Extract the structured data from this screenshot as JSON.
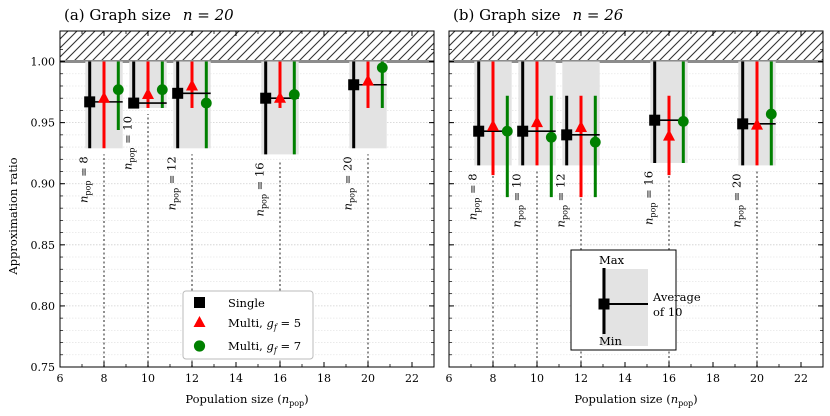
{
  "chart_data": [
    {
      "type": "errorbar",
      "title": "(a) Graph size   n = 20",
      "title_label": "(a) Graph size",
      "title_n": "n = 20",
      "xlabel": "Population size (n_pop)",
      "ylabel": "Approximation ratio",
      "xlim": [
        6,
        23
      ],
      "ylim": [
        0.75,
        1.025
      ],
      "xticks": [
        6,
        8,
        10,
        12,
        14,
        16,
        18,
        20,
        22
      ],
      "yticks": [
        0.75,
        0.8,
        0.85,
        0.9,
        0.95,
        1.0
      ],
      "ytick_labels": [
        "0.75",
        "0.80",
        "0.85",
        "0.90",
        "0.95",
        "1.00"
      ],
      "groups": [
        {
          "label": "n_pop = 8",
          "n_pop": 8,
          "band_min": 0.929,
          "single": {
            "avg": 0.967,
            "min": 0.929,
            "max": 1.0
          },
          "multi5": {
            "avg": 0.97,
            "min": 0.929,
            "max": 1.0
          },
          "multi7": {
            "avg": 0.977,
            "min": 0.944,
            "max": 1.0
          }
        },
        {
          "label": "n_pop = 10",
          "n_pop": 10,
          "band_min": 0.962,
          "single": {
            "avg": 0.966,
            "min": 0.962,
            "max": 1.0
          },
          "multi5": {
            "avg": 0.973,
            "min": 0.962,
            "max": 1.0
          },
          "multi7": {
            "avg": 0.977,
            "min": 0.962,
            "max": 1.0
          }
        },
        {
          "label": "n_pop = 12",
          "n_pop": 12,
          "band_min": 0.929,
          "single": {
            "avg": 0.974,
            "min": 0.929,
            "max": 1.0
          },
          "multi5": {
            "avg": 0.98,
            "min": 0.962,
            "max": 1.0
          },
          "multi7": {
            "avg": 0.966,
            "min": 0.929,
            "max": 1.0
          }
        },
        {
          "label": "n_pop = 16",
          "n_pop": 16,
          "band_min": 0.924,
          "single": {
            "avg": 0.97,
            "min": 0.924,
            "max": 1.0
          },
          "multi5": {
            "avg": 0.97,
            "min": 0.962,
            "max": 1.0
          },
          "multi7": {
            "avg": 0.973,
            "min": 0.924,
            "max": 1.0
          }
        },
        {
          "label": "n_pop = 20",
          "n_pop": 20,
          "band_min": 0.929,
          "single": {
            "avg": 0.981,
            "min": 0.929,
            "max": 1.0
          },
          "multi5": {
            "avg": 0.984,
            "min": 0.962,
            "max": 1.0
          },
          "multi7": {
            "avg": 0.995,
            "min": 0.962,
            "max": 1.005
          }
        }
      ]
    },
    {
      "type": "errorbar",
      "title": "(b) Graph size   n = 26",
      "title_label": "(b) Graph size",
      "title_n": "n = 26",
      "xlabel": "Population size (n_pop)",
      "ylabel": "",
      "xlim": [
        6,
        23
      ],
      "ylim": [
        0.75,
        1.025
      ],
      "xticks": [
        6,
        8,
        10,
        12,
        14,
        16,
        18,
        20,
        22
      ],
      "yticks": [
        0.75,
        0.8,
        0.85,
        0.9,
        0.95,
        1.0
      ],
      "groups": [
        {
          "label": "n_pop = 8",
          "n_pop": 8,
          "band_min": 0.915,
          "single": {
            "avg": 0.943,
            "min": 0.915,
            "max": 1.0
          },
          "multi5": {
            "avg": 0.947,
            "min": 0.907,
            "max": 1.0
          },
          "multi7": {
            "avg": 0.943,
            "min": 0.889,
            "max": 0.972
          }
        },
        {
          "label": "n_pop = 10",
          "n_pop": 10,
          "band_min": 0.915,
          "single": {
            "avg": 0.943,
            "min": 0.915,
            "max": 1.0
          },
          "multi5": {
            "avg": 0.95,
            "min": 0.915,
            "max": 1.0
          },
          "multi7": {
            "avg": 0.938,
            "min": 0.889,
            "max": 0.972
          }
        },
        {
          "label": "n_pop = 12",
          "n_pop": 12,
          "band_min": 0.915,
          "single": {
            "avg": 0.94,
            "min": 0.915,
            "max": 0.972
          },
          "multi5": {
            "avg": 0.946,
            "min": 0.889,
            "max": 0.972
          },
          "multi7": {
            "avg": 0.934,
            "min": 0.889,
            "max": 0.972
          }
        },
        {
          "label": "n_pop = 16",
          "n_pop": 16,
          "band_min": 0.917,
          "single": {
            "avg": 0.952,
            "min": 0.917,
            "max": 1.0
          },
          "multi5": {
            "avg": 0.939,
            "min": 0.907,
            "max": 0.972
          },
          "multi7": {
            "avg": 0.951,
            "min": 0.917,
            "max": 1.0
          }
        },
        {
          "label": "n_pop = 20",
          "n_pop": 20,
          "band_min": 0.915,
          "single": {
            "avg": 0.949,
            "min": 0.915,
            "max": 1.0
          },
          "multi5": {
            "avg": 0.948,
            "min": 0.915,
            "max": 1.0
          },
          "multi7": {
            "avg": 0.957,
            "min": 0.915,
            "max": 1.0
          }
        }
      ]
    }
  ],
  "legend": {
    "location": "lower-center of panel (a)",
    "items": [
      {
        "key": "single",
        "label": "Single",
        "color": "#000000",
        "marker": "square"
      },
      {
        "key": "multi5",
        "label": "Multi, g_f = 5",
        "color": "#ff0000",
        "marker": "triangle"
      },
      {
        "key": "multi7",
        "label": "Multi, g_f = 7",
        "color": "#008000",
        "marker": "circle"
      }
    ]
  },
  "key_box": {
    "location": "lower-center of panel (b)",
    "max_label": "Max",
    "min_label": "Min",
    "avg_label_line1": "Average",
    "avg_label_line2": "of 10"
  },
  "colors": {
    "single": "#000000",
    "multi5": "#ff0000",
    "multi7": "#008000",
    "band": "#e3e3e3",
    "grid": "#d6d6d6",
    "hatch_line": "#8c8c8c"
  }
}
